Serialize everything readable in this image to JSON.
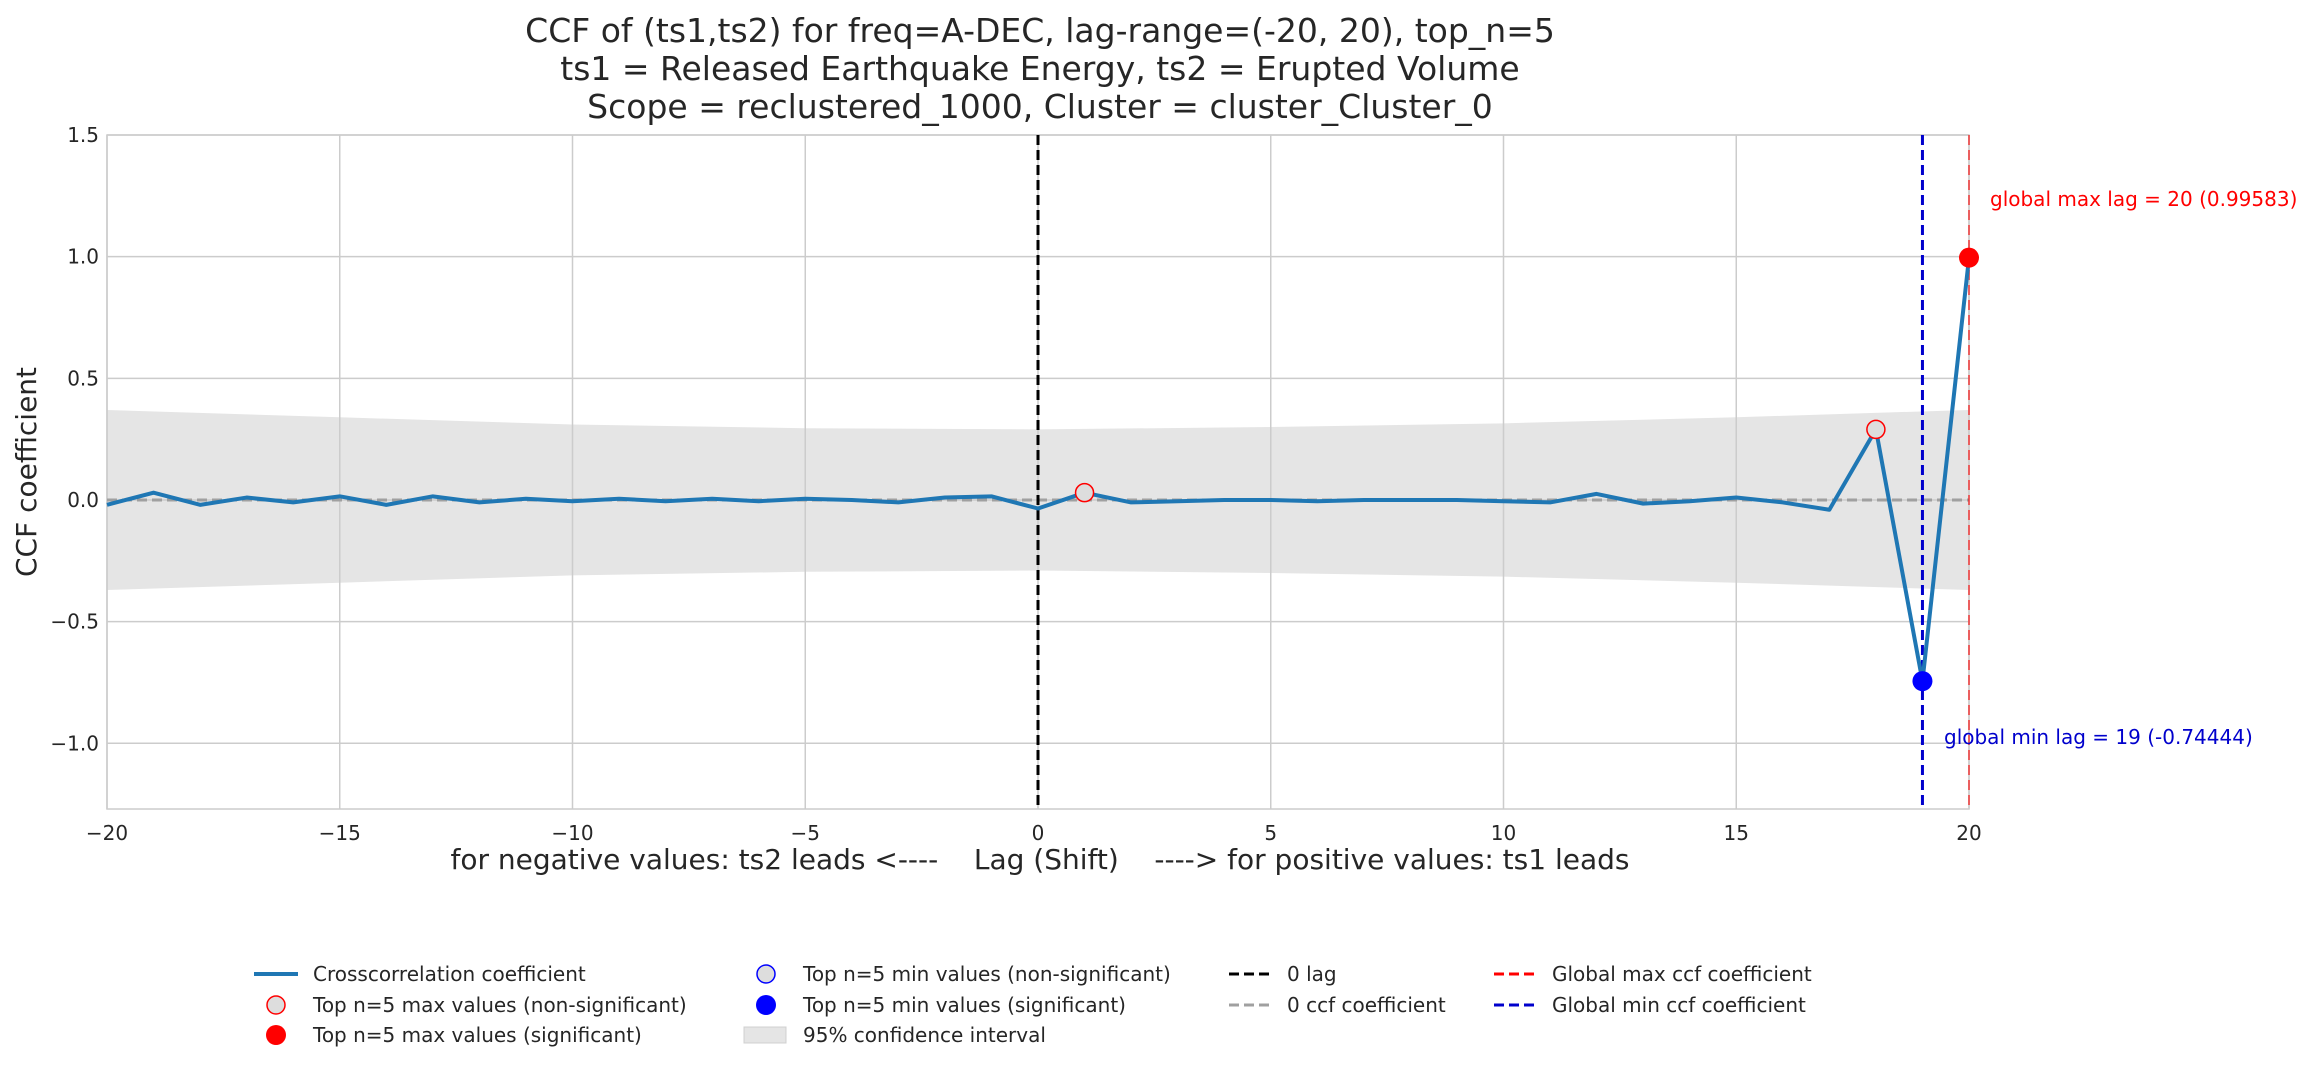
{
  "chart_data": {
    "type": "line",
    "title": [
      "CCF of (ts1,ts2) for freq=A-DEC, lag-range=(-20, 20), top_n=5",
      "ts1 = Released Earthquake Energy, ts2 = Erupted Volume",
      "Scope = reclustered_1000, Cluster = cluster_Cluster_0"
    ],
    "xlabel": "for negative values: ts2 leads <----    Lag (Shift)    ----> for positive values: ts1 leads",
    "ylabel": "CCF coefficient",
    "xlim": [
      -20,
      20
    ],
    "ylim": [
      -1.27,
      1.5
    ],
    "xticks": [
      -20,
      -15,
      -10,
      -5,
      0,
      5,
      10,
      15,
      20
    ],
    "xtick_labels": [
      "−20",
      "−15",
      "−10",
      "−5",
      "0",
      "5",
      "10",
      "15",
      "20"
    ],
    "yticks": [
      -1.0,
      -0.5,
      0.0,
      0.5,
      1.0,
      1.5
    ],
    "ytick_labels": [
      "−1.0",
      "−0.5",
      "0.0",
      "0.5",
      "1.0",
      "1.5"
    ],
    "grid": true,
    "legend_placement": "bottom-center",
    "colors": {
      "ccf_line": "#1f77b4",
      "ci_fill": "#e5e5e5",
      "zero_lag": "#000000",
      "zero_ccf": "#a0a0a0",
      "global_max": "#ff0000",
      "global_min": "#0000cc",
      "grid": "#cccccc"
    },
    "series": [
      {
        "name": "Crosscorrelation coefficient",
        "x": [
          -20,
          -19,
          -18,
          -17,
          -16,
          -15,
          -14,
          -13,
          -12,
          -11,
          -10,
          -9,
          -8,
          -7,
          -6,
          -5,
          -4,
          -3,
          -2,
          -1,
          0,
          1,
          2,
          3,
          4,
          5,
          6,
          7,
          8,
          9,
          10,
          11,
          12,
          13,
          14,
          15,
          16,
          17,
          18,
          19,
          20
        ],
        "values": [
          -0.02,
          0.03,
          -0.02,
          0.01,
          -0.01,
          0.015,
          -0.02,
          0.015,
          -0.01,
          0.005,
          -0.005,
          0.005,
          -0.005,
          0.005,
          -0.005,
          0.005,
          0.0,
          -0.01,
          0.01,
          0.015,
          -0.035,
          0.03,
          -0.01,
          -0.005,
          0.0,
          0.0,
          -0.005,
          0.0,
          0.0,
          0.0,
          -0.005,
          -0.01,
          0.025,
          -0.015,
          -0.005,
          0.01,
          -0.01,
          -0.04,
          0.29,
          -0.74444,
          0.99583
        ]
      }
    ],
    "confidence_interval": {
      "name": "95% confidence interval",
      "x": [
        -20,
        -15,
        -10,
        -5,
        0,
        5,
        10,
        15,
        20
      ],
      "upper": [
        0.37,
        0.34,
        0.31,
        0.295,
        0.29,
        0.3,
        0.315,
        0.34,
        0.37
      ],
      "lower": [
        -0.37,
        -0.34,
        -0.31,
        -0.295,
        -0.29,
        -0.3,
        -0.315,
        -0.34,
        -0.37
      ]
    },
    "top_max_nonsig": {
      "name": "Top n=5 max values (non-significant)",
      "x": [
        1,
        18
      ],
      "y": [
        0.03,
        0.29
      ]
    },
    "top_max_sig": {
      "name": "Top n=5 max values (significant)",
      "x": [
        20
      ],
      "y": [
        0.99583
      ]
    },
    "top_min_nonsig": {
      "name": "Top n=5 min values (non-significant)",
      "x": [],
      "y": []
    },
    "top_min_sig": {
      "name": "Top n=5 min values (significant)",
      "x": [
        19
      ],
      "y": [
        -0.74444
      ]
    },
    "zero_lag_label": "0 lag",
    "zero_ccf_label": "0 ccf coefficient",
    "global_max": {
      "name": "Global max ccf coefficient",
      "lag": 20,
      "value": 0.99583,
      "annotation": "global max lag = 20 (0.99583)"
    },
    "global_min": {
      "name": "Global min ccf coefficient",
      "lag": 19,
      "value": -0.74444,
      "annotation": "global min lag = 19 (-0.74444)"
    }
  }
}
